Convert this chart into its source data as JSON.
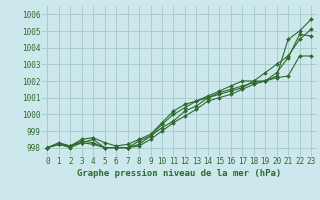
{
  "title": "Graphe pression niveau de la mer (hPa)",
  "bg_color": "#cce8ec",
  "grid_color": "#aacccc",
  "line_color": "#2d6a2d",
  "xlim": [
    -0.5,
    23.5
  ],
  "ylim": [
    997.5,
    1006.5
  ],
  "yticks": [
    998,
    999,
    1000,
    1001,
    1002,
    1003,
    1004,
    1005,
    1006
  ],
  "xticks": [
    0,
    1,
    2,
    3,
    4,
    5,
    6,
    7,
    8,
    9,
    10,
    11,
    12,
    13,
    14,
    15,
    16,
    17,
    18,
    19,
    20,
    21,
    22,
    23
  ],
  "series": [
    [
      998.0,
      998.2,
      998.1,
      998.3,
      998.5,
      998.0,
      998.0,
      998.0,
      998.1,
      998.5,
      999.0,
      999.5,
      999.9,
      1000.3,
      1000.8,
      1001.0,
      1001.2,
      1001.5,
      1001.8,
      1002.0,
      1002.3,
      1004.5,
      1005.0,
      1005.7
    ],
    [
      998.0,
      998.3,
      998.1,
      998.4,
      998.3,
      998.0,
      998.0,
      998.0,
      998.2,
      998.7,
      999.2,
      999.6,
      1000.2,
      1000.5,
      1001.0,
      1001.2,
      1001.4,
      1001.6,
      1002.0,
      1002.0,
      1002.5,
      1003.4,
      1004.8,
      1004.7
    ],
    [
      998.0,
      998.2,
      998.0,
      998.3,
      998.2,
      998.0,
      998.0,
      998.0,
      998.4,
      998.7,
      999.4,
      1000.0,
      1000.4,
      1000.8,
      1001.0,
      1001.3,
      1001.5,
      1001.7,
      1001.9,
      1002.0,
      1002.2,
      1002.3,
      1003.5,
      1003.5
    ],
    [
      998.0,
      998.2,
      998.1,
      998.5,
      998.6,
      998.3,
      998.1,
      998.2,
      998.5,
      998.8,
      999.5,
      1000.2,
      1000.6,
      1000.8,
      1001.1,
      1001.4,
      1001.7,
      1002.0,
      1002.0,
      1002.5,
      1003.0,
      1003.5,
      1004.5,
      1005.1
    ]
  ],
  "tick_fontsize": 5.5,
  "label_fontsize": 6.5
}
